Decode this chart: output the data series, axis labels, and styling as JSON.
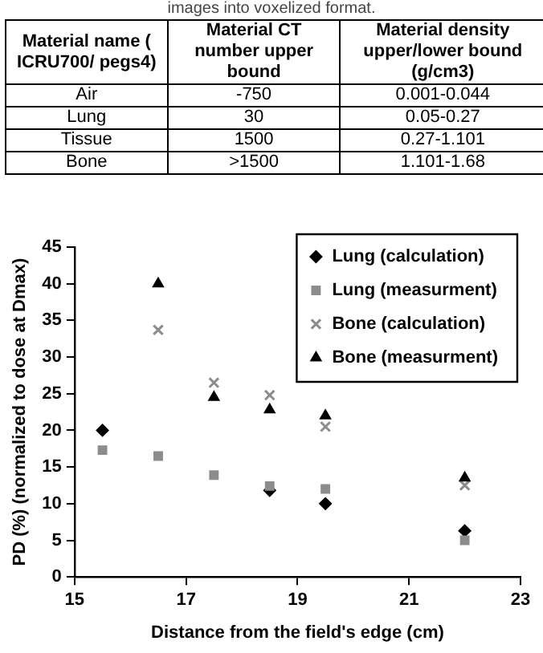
{
  "chart_data": [
    {
      "type": "other",
      "title": "images into voxelized format.",
      "annotations": [
        "Material name ( ICRU700/ pegs4)",
        "Material CT number upper bound",
        "Material density upper/lower bound (g/cm3)",
        "Air",
        "-750",
        "0.001-0.044",
        "Lung",
        "30",
        "0.05-0.27",
        "Tissue",
        "1500",
        "0.27-1.101",
        "Bone",
        ">1500",
        "1.101-1.68"
      ]
    },
    {
      "type": "scatter",
      "xlabel": "Distance from the field's edge (cm)",
      "ylabel": "PD (%) (normalized to dose at Dmax)",
      "xlim": [
        15,
        23
      ],
      "xticks": [
        15,
        17,
        19,
        21,
        23
      ],
      "ylim": [
        0,
        45
      ],
      "yticks": [
        0,
        5,
        10,
        15,
        20,
        25,
        30,
        35,
        40,
        45
      ],
      "grid": false,
      "legend": "top right",
      "series": [
        {
          "name": "Lung (calculation)",
          "color": "#000000",
          "marker": "diamond",
          "x": [
            15.5,
            16.5,
            17.5,
            18.5,
            19.5,
            22
          ],
          "values": [
            20,
            null,
            null,
            11.8,
            10,
            6.3
          ]
        },
        {
          "name": "Lung (measurment)",
          "color": "#8c8c8c",
          "marker": "square",
          "x": [
            15.5,
            16.5,
            17.5,
            18.5,
            19.5,
            22
          ],
          "values": [
            17.3,
            16.5,
            13.9,
            12.4,
            12,
            5
          ]
        },
        {
          "name": "Bone (calculation)",
          "color": "#8c8c8c",
          "marker": "cross",
          "x": [
            16.5,
            17.5,
            18.5,
            19.5,
            22
          ],
          "values": [
            33.7,
            26.5,
            24.8,
            20.5,
            12.5
          ]
        },
        {
          "name": "Bone (measurment)",
          "color": "#000000",
          "marker": "triangle",
          "x": [
            16.5,
            17.5,
            18.5,
            19.5,
            22
          ],
          "values": [
            40,
            24.5,
            22.8,
            22,
            13.5
          ]
        }
      ]
    }
  ]
}
